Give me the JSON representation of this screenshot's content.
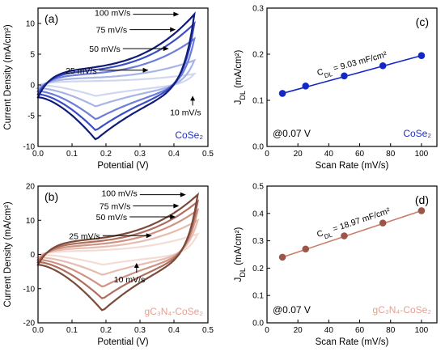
{
  "chart_data": [
    {
      "panel": "(a)",
      "type": "line",
      "xlabel": "Potential (V)",
      "ylabel": "Current Density (mA/cm²)",
      "xlim": [
        0.0,
        0.5
      ],
      "ylim": [
        -10,
        12.5
      ],
      "xticks": [
        0.0,
        0.1,
        0.2,
        0.3,
        0.4,
        0.5
      ],
      "yticks": [
        -10,
        -5,
        0,
        5,
        10
      ],
      "material": "CoSe₂",
      "material_color": "#2030c0",
      "cv": {
        "x_start": 0.0,
        "x_end": 0.46,
        "x_peak": 0.17,
        "series": [
          {
            "name": "10 mV/s",
            "color": "#d0d8f0",
            "i_end": 1.8,
            "i_start": 0.0,
            "i_peak": -1.8,
            "upper": 0.6,
            "lower": -0.2
          },
          {
            "name": "25 mV/s",
            "color": "#a8b4e6",
            "i_end": 4.0,
            "i_start": -0.5,
            "i_peak": -3.5,
            "upper": 1.1,
            "lower": -0.5
          },
          {
            "name": "50 mV/s",
            "color": "#6c7dda",
            "i_end": 7.5,
            "i_start": -1.0,
            "i_peak": -5.6,
            "upper": 1.7,
            "lower": -0.9
          },
          {
            "name": "75 mV/s",
            "color": "#3b4ec4",
            "i_end": 10.0,
            "i_start": -1.5,
            "i_peak": -7.4,
            "upper": 2.2,
            "lower": -1.2
          },
          {
            "name": "100 mV/s",
            "color": "#101c78",
            "i_end": 11.5,
            "i_start": -2.0,
            "i_peak": -8.9,
            "upper": 2.6,
            "lower": -1.6
          }
        ]
      },
      "annotations": [
        {
          "text": "100 mV/s",
          "v": 0.42,
          "i": 11.5
        },
        {
          "text": "75 mV/s",
          "v": 0.41,
          "i": 9.0
        },
        {
          "text": "50 mV/s",
          "v": 0.39,
          "i": 5.9
        },
        {
          "text": "25 mV/s",
          "v": 0.33,
          "i": 2.4
        },
        {
          "text": "10 mV/s",
          "v": 0.455,
          "i": -1.5
        }
      ]
    },
    {
      "panel": "(c)",
      "type": "scatter",
      "xlabel": "Scan Rate (mV/s)",
      "ylabel": "J_DL (mA/cm²)",
      "xlim": [
        0,
        110
      ],
      "ylim": [
        0.0,
        0.3
      ],
      "xticks": [
        0,
        20,
        40,
        60,
        80,
        100
      ],
      "yticks": [
        0.0,
        0.1,
        0.2,
        0.3
      ],
      "x": [
        10,
        25,
        50,
        75,
        100
      ],
      "y": [
        0.115,
        0.131,
        0.153,
        0.175,
        0.197
      ],
      "fit_label": "C_DL = 9.03 mF/cm²",
      "condition": "@0.07 V",
      "material": "CoSe₂",
      "color": "#1428c8",
      "line_color": "#1428c8"
    },
    {
      "panel": "(b)",
      "type": "line",
      "xlabel": "Potential (V)",
      "ylabel": "Current Density (mA/cm²)",
      "xlim": [
        0.0,
        0.5
      ],
      "ylim": [
        -20,
        20
      ],
      "xticks": [
        0.0,
        0.1,
        0.2,
        0.3,
        0.4,
        0.5
      ],
      "yticks": [
        -20,
        -10,
        0,
        10,
        20
      ],
      "material": "gC₃N₄-CoSe₂",
      "material_color": "#e8a090",
      "cv": {
        "x_start": 0.0,
        "x_end": 0.47,
        "x_peak": 0.19,
        "series": [
          {
            "name": "10 mV/s",
            "color": "#f4dcd4",
            "i_end": 6.0,
            "i_start": 0.0,
            "i_peak": -3.0,
            "upper": 1.0,
            "lower": -0.5
          },
          {
            "name": "25 mV/s",
            "color": "#e6bcb0",
            "i_end": 10.0,
            "i_start": -0.8,
            "i_peak": -6.0,
            "upper": 1.8,
            "lower": -1.0
          },
          {
            "name": "50 mV/s",
            "color": "#cf9384",
            "i_end": 13.0,
            "i_start": -1.5,
            "i_peak": -9.5,
            "upper": 2.6,
            "lower": -1.6
          },
          {
            "name": "75 mV/s",
            "color": "#b06e5e",
            "i_end": 15.5,
            "i_start": -2.2,
            "i_peak": -13.0,
            "upper": 3.4,
            "lower": -2.2
          },
          {
            "name": "100 mV/s",
            "color": "#7a4a3a",
            "i_end": 17.5,
            "i_start": -3.0,
            "i_peak": -16.5,
            "upper": 4.2,
            "lower": -2.8
          }
        ]
      },
      "annotations": [
        {
          "text": "100 mV/s",
          "v": 0.44,
          "i": 17.5
        },
        {
          "text": "75 mV/s",
          "v": 0.42,
          "i": 14.2
        },
        {
          "text": "50 mV/s",
          "v": 0.41,
          "i": 11.0
        },
        {
          "text": "25 mV/s",
          "v": 0.34,
          "i": 5.5
        },
        {
          "text": "10 mV/s",
          "v": 0.29,
          "i": -2.0
        }
      ]
    },
    {
      "panel": "(d)",
      "type": "scatter",
      "xlabel": "Scan Rate (mV/s)",
      "ylabel": "J_DL (mA/cm²)",
      "xlim": [
        0,
        110
      ],
      "ylim": [
        0.0,
        0.5
      ],
      "xticks": [
        0,
        20,
        40,
        60,
        80,
        100
      ],
      "yticks": [
        0.0,
        0.1,
        0.2,
        0.3,
        0.4,
        0.5
      ],
      "x": [
        10,
        25,
        50,
        75,
        100
      ],
      "y": [
        0.24,
        0.27,
        0.318,
        0.365,
        0.41
      ],
      "fit_label": "C_DL = 18.97 mF/cm²",
      "condition": "@0.07 V",
      "material": "gC₃N₄-CoSe₂",
      "color": "#9a5648",
      "line_color": "#c8806e"
    }
  ]
}
